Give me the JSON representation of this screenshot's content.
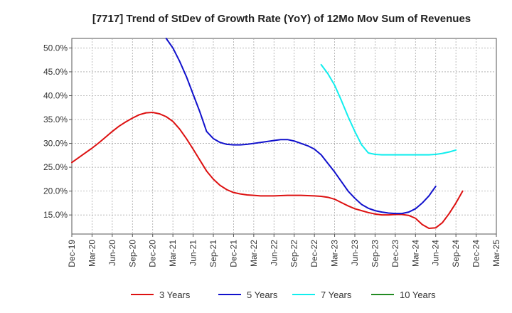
{
  "chart_data": {
    "type": "line",
    "title": "[7717]  Trend of StDev of Growth Rate (YoY) of 12Mo Mov Sum of Revenues",
    "xlabel": "",
    "ylabel": "",
    "ylim": [
      11,
      52
    ],
    "x_tick_labels": [
      "Dec-19",
      "Mar-20",
      "Jun-20",
      "Sep-20",
      "Dec-20",
      "Mar-21",
      "Jun-21",
      "Sep-21",
      "Dec-21",
      "Mar-22",
      "Jun-22",
      "Sep-22",
      "Dec-22",
      "Mar-23",
      "Jun-23",
      "Sep-23",
      "Dec-23",
      "Mar-24",
      "Jun-24",
      "Sep-24",
      "Dec-24",
      "Mar-25"
    ],
    "y_ticks": [
      15,
      20,
      25,
      30,
      35,
      40,
      45,
      50
    ],
    "y_tick_labels": [
      "15.0%",
      "20.0%",
      "25.0%",
      "30.0%",
      "35.0%",
      "40.0%",
      "45.0%",
      "50.0%"
    ],
    "grid": true,
    "legend_position": "bottom",
    "series": [
      {
        "name": "3 Years",
        "color": "#dd1111",
        "start_index": 0,
        "values": [
          26.0,
          27.0,
          28.0,
          29.0,
          30.1,
          31.3,
          32.5,
          33.6,
          34.5,
          35.3,
          36.0,
          36.4,
          36.5,
          36.2,
          35.6,
          34.6,
          33.0,
          31.0,
          28.8,
          26.5,
          24.2,
          22.5,
          21.2,
          20.3,
          19.7,
          19.4,
          19.2,
          19.1,
          19.0,
          19.0,
          19.0,
          19.05,
          19.1,
          19.1,
          19.1,
          19.05,
          19.0,
          18.9,
          18.7,
          18.3,
          17.6,
          16.9,
          16.3,
          15.9,
          15.5,
          15.2,
          15.0,
          15.0,
          15.1,
          15.1,
          14.9,
          14.3,
          13.0,
          12.2,
          12.3,
          13.4,
          15.3,
          17.5,
          20.0
        ]
      },
      {
        "name": "5 Years",
        "color": "#1111cc",
        "start_index": 14,
        "values": [
          52.0,
          50.0,
          47.2,
          44.0,
          40.3,
          36.6,
          32.5,
          31.0,
          30.2,
          29.8,
          29.7,
          29.7,
          29.8,
          30.0,
          30.2,
          30.4,
          30.6,
          30.8,
          30.8,
          30.5,
          30.0,
          29.5,
          28.8,
          27.6,
          25.8,
          24.0,
          22.0,
          20.0,
          18.5,
          17.2,
          16.4,
          15.9,
          15.6,
          15.4,
          15.3,
          15.3,
          15.6,
          16.3,
          17.5,
          19.0,
          21.0
        ]
      },
      {
        "name": "7 Years",
        "color": "#11eeee",
        "start_index": 37,
        "values": [
          46.5,
          44.6,
          42.2,
          39.0,
          35.6,
          32.5,
          29.7,
          28.0,
          27.7,
          27.6,
          27.6,
          27.6,
          27.6,
          27.6,
          27.6,
          27.6,
          27.6,
          27.7,
          27.9,
          28.2,
          28.6
        ]
      },
      {
        "name": "10 Years",
        "color": "#228b22",
        "start_index": 0,
        "values": []
      }
    ]
  }
}
